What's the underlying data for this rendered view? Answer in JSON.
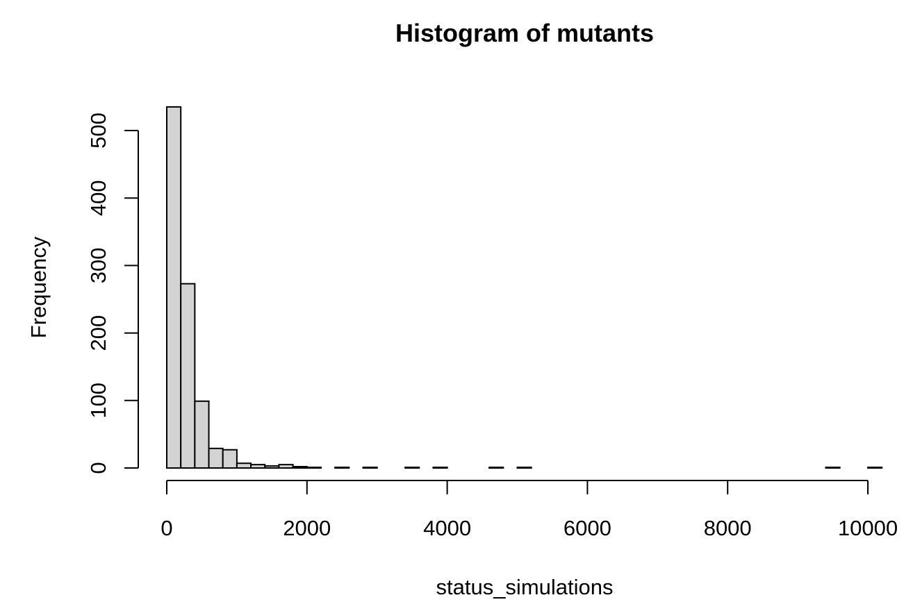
{
  "chart_data": {
    "type": "bar",
    "title": "Histogram of mutants",
    "xlabel": "status_simulations",
    "ylabel": "Frequency",
    "bin_width": 200,
    "bin_start": 0,
    "values": [
      535,
      273,
      99,
      29,
      27,
      7,
      5,
      3,
      5,
      2,
      1,
      0,
      1,
      0,
      1,
      0,
      0,
      1,
      0,
      1,
      0,
      0,
      0,
      1,
      0,
      1,
      0,
      0,
      0,
      0,
      0,
      0,
      0,
      0,
      0,
      0,
      0,
      0,
      0,
      0,
      0,
      0,
      0,
      0,
      0,
      0,
      0,
      1,
      0,
      0,
      1
    ],
    "xlim": [
      0,
      10200
    ],
    "ylim": [
      0,
      535
    ],
    "xticks": [
      0,
      2000,
      4000,
      6000,
      8000,
      10000
    ],
    "yticks": [
      0,
      100,
      200,
      300,
      400,
      500
    ],
    "bar_color": "#d3d3d3",
    "grid": false
  }
}
